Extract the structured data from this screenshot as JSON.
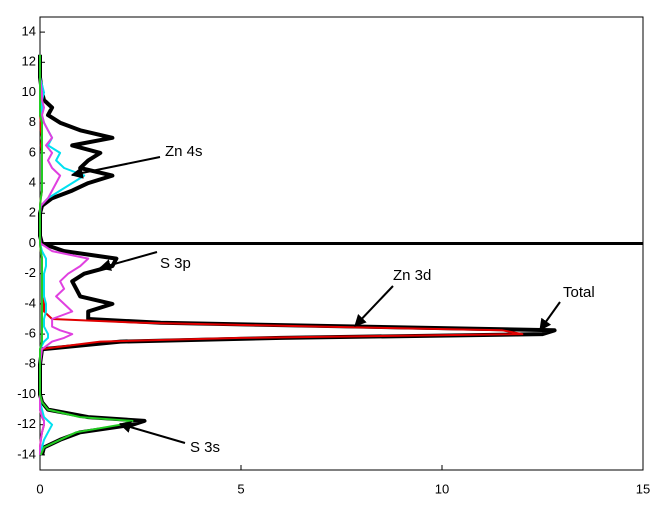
{
  "chart_data": {
    "type": "line",
    "orientation": "horizontal",
    "y": [
      -14,
      -13.5,
      -13,
      -12.5,
      -12,
      -11.75,
      -11.5,
      -11,
      -10.5,
      -10,
      -9,
      -8,
      -7,
      -6.5,
      -6.25,
      -6,
      -5.75,
      -5.5,
      -5.25,
      -5,
      -4.5,
      -4,
      -3.5,
      -3,
      -2.5,
      -2,
      -1.5,
      -1,
      -0.5,
      0,
      0.5,
      1,
      2,
      2.5,
      3,
      3.5,
      4,
      4.5,
      5,
      5.5,
      6,
      6.5,
      7,
      7.5,
      8,
      8.5,
      9,
      9.5,
      10,
      11,
      12,
      12.5
    ],
    "series": [
      {
        "name": "Total",
        "color": "#000000",
        "width": 4,
        "values": [
          0.05,
          0.1,
          0.5,
          1.0,
          2.3,
          2.6,
          1.2,
          0.2,
          0.05,
          0,
          0,
          0,
          0.05,
          2,
          6,
          12.5,
          12.8,
          8,
          3,
          1.2,
          1.2,
          1.8,
          1.0,
          0.9,
          0.8,
          1.1,
          1.8,
          1.9,
          0.6,
          0.05,
          0,
          0,
          0,
          0.05,
          0.3,
          0.8,
          1.2,
          1.8,
          1.0,
          1.2,
          1.5,
          0.8,
          1.8,
          1.0,
          0.5,
          0.2,
          0.3,
          0.1,
          0.05,
          0,
          0,
          0
        ]
      },
      {
        "name": "Zn 3d",
        "color": "#e00000",
        "width": 2,
        "values": [
          0,
          0,
          0.02,
          0.05,
          0.1,
          0.1,
          0.05,
          0,
          0,
          0,
          0,
          0,
          0,
          1.5,
          5,
          12,
          11.5,
          7,
          2.5,
          0.3,
          0.1,
          0.1,
          0.05,
          0.05,
          0.05,
          0.05,
          0.05,
          0.05,
          0.02,
          0,
          0,
          0,
          0,
          0,
          0.02,
          0.05,
          0.05,
          0.05,
          0.05,
          0.05,
          0.05,
          0.02,
          0.05,
          0.02,
          0.02,
          0,
          0,
          0,
          0,
          0,
          0,
          0
        ]
      },
      {
        "name": "Zn 4s",
        "color": "#00e0f0",
        "width": 2,
        "values": [
          0,
          0.05,
          0.1,
          0.2,
          0.3,
          0.2,
          0.1,
          0.05,
          0,
          0,
          0,
          0,
          0,
          0.1,
          0.2,
          0.2,
          0.15,
          0.1,
          0.1,
          0.1,
          0.15,
          0.15,
          0.1,
          0.1,
          0.1,
          0.1,
          0.15,
          0.15,
          0.05,
          0,
          0,
          0,
          0,
          0.02,
          0.2,
          0.5,
          0.8,
          1.1,
          0.6,
          0.4,
          0.5,
          0.2,
          0.3,
          0.2,
          0.1,
          0.05,
          0.05,
          0.05,
          0.1,
          0,
          0,
          0
        ]
      },
      {
        "name": "S 3p",
        "color": "#e040e0",
        "width": 2,
        "values": [
          0,
          0,
          0.02,
          0.05,
          0.1,
          0.1,
          0.05,
          0,
          0,
          0,
          0,
          0,
          0.05,
          0.3,
          0.6,
          0.8,
          0.5,
          0.3,
          0.3,
          0.3,
          0.8,
          0.6,
          0.4,
          0.6,
          0.5,
          0.7,
          1.0,
          1.2,
          0.3,
          0.02,
          0,
          0,
          0,
          0.02,
          0.2,
          0.3,
          0.4,
          0.5,
          0.3,
          0.2,
          0.3,
          0.15,
          0.3,
          0.2,
          0.1,
          0.05,
          0.1,
          0.05,
          0.05,
          0,
          0,
          0
        ]
      },
      {
        "name": "S 3s",
        "color": "#22cc22",
        "width": 2,
        "values": [
          0.02,
          0.1,
          0.5,
          0.9,
          2.0,
          2.3,
          1.0,
          0.2,
          0.05,
          0,
          0,
          0,
          0,
          0.05,
          0.05,
          0.05,
          0.05,
          0.05,
          0.05,
          0.05,
          0.05,
          0.05,
          0.05,
          0.05,
          0.05,
          0.05,
          0.05,
          0.05,
          0.02,
          0,
          0,
          0,
          0,
          0,
          0.02,
          0.05,
          0.05,
          0.05,
          0.05,
          0.05,
          0.05,
          0.05,
          0.05,
          0.05,
          0.05,
          0,
          0,
          0,
          0,
          0,
          0,
          0
        ]
      }
    ],
    "annotations": [
      {
        "text": "Zn 4s"
      },
      {
        "text": "S 3p"
      },
      {
        "text": "Zn 3d"
      },
      {
        "text": "Total"
      },
      {
        "text": "S 3s"
      }
    ],
    "xlim": [
      0,
      15
    ],
    "xticks": [
      0,
      5,
      10,
      15
    ],
    "ylim": [
      -15,
      15
    ],
    "yticks": [
      -14,
      -12,
      -10,
      -8,
      -6,
      -4,
      -2,
      0,
      2,
      4,
      6,
      8,
      10,
      12,
      14
    ],
    "grid": false
  }
}
